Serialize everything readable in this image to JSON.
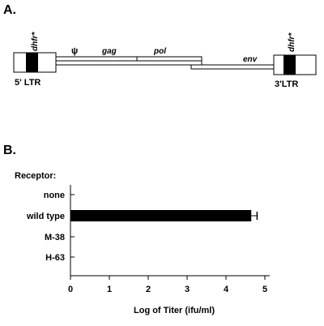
{
  "panel_a": {
    "letter": "A.",
    "ltr_left_gene": "dhfr*",
    "ltr_right_gene": "dhfr*",
    "psi": "ψ",
    "gag": "gag",
    "pol": "pol",
    "env": "env",
    "ltr_left_label": "5' LTR",
    "ltr_right_label": "3'LTR"
  },
  "panel_b": {
    "letter": "B.",
    "receptor_label": "Receptor:"
  },
  "chart_data": {
    "type": "bar",
    "orientation": "horizontal",
    "categories": [
      "none",
      "wild type",
      "M-38",
      "H-63"
    ],
    "values": [
      0,
      4.65,
      0,
      0
    ],
    "error": [
      0,
      0.15,
      0,
      0
    ],
    "xlabel": "Log of Titer   (ifu/ml)",
    "ylabel": "Receptor:",
    "xlim": [
      0,
      5
    ],
    "xticks": [
      "0",
      "1",
      "2",
      "3",
      "4",
      "5"
    ],
    "grid": false,
    "bar_color": "#000000"
  }
}
